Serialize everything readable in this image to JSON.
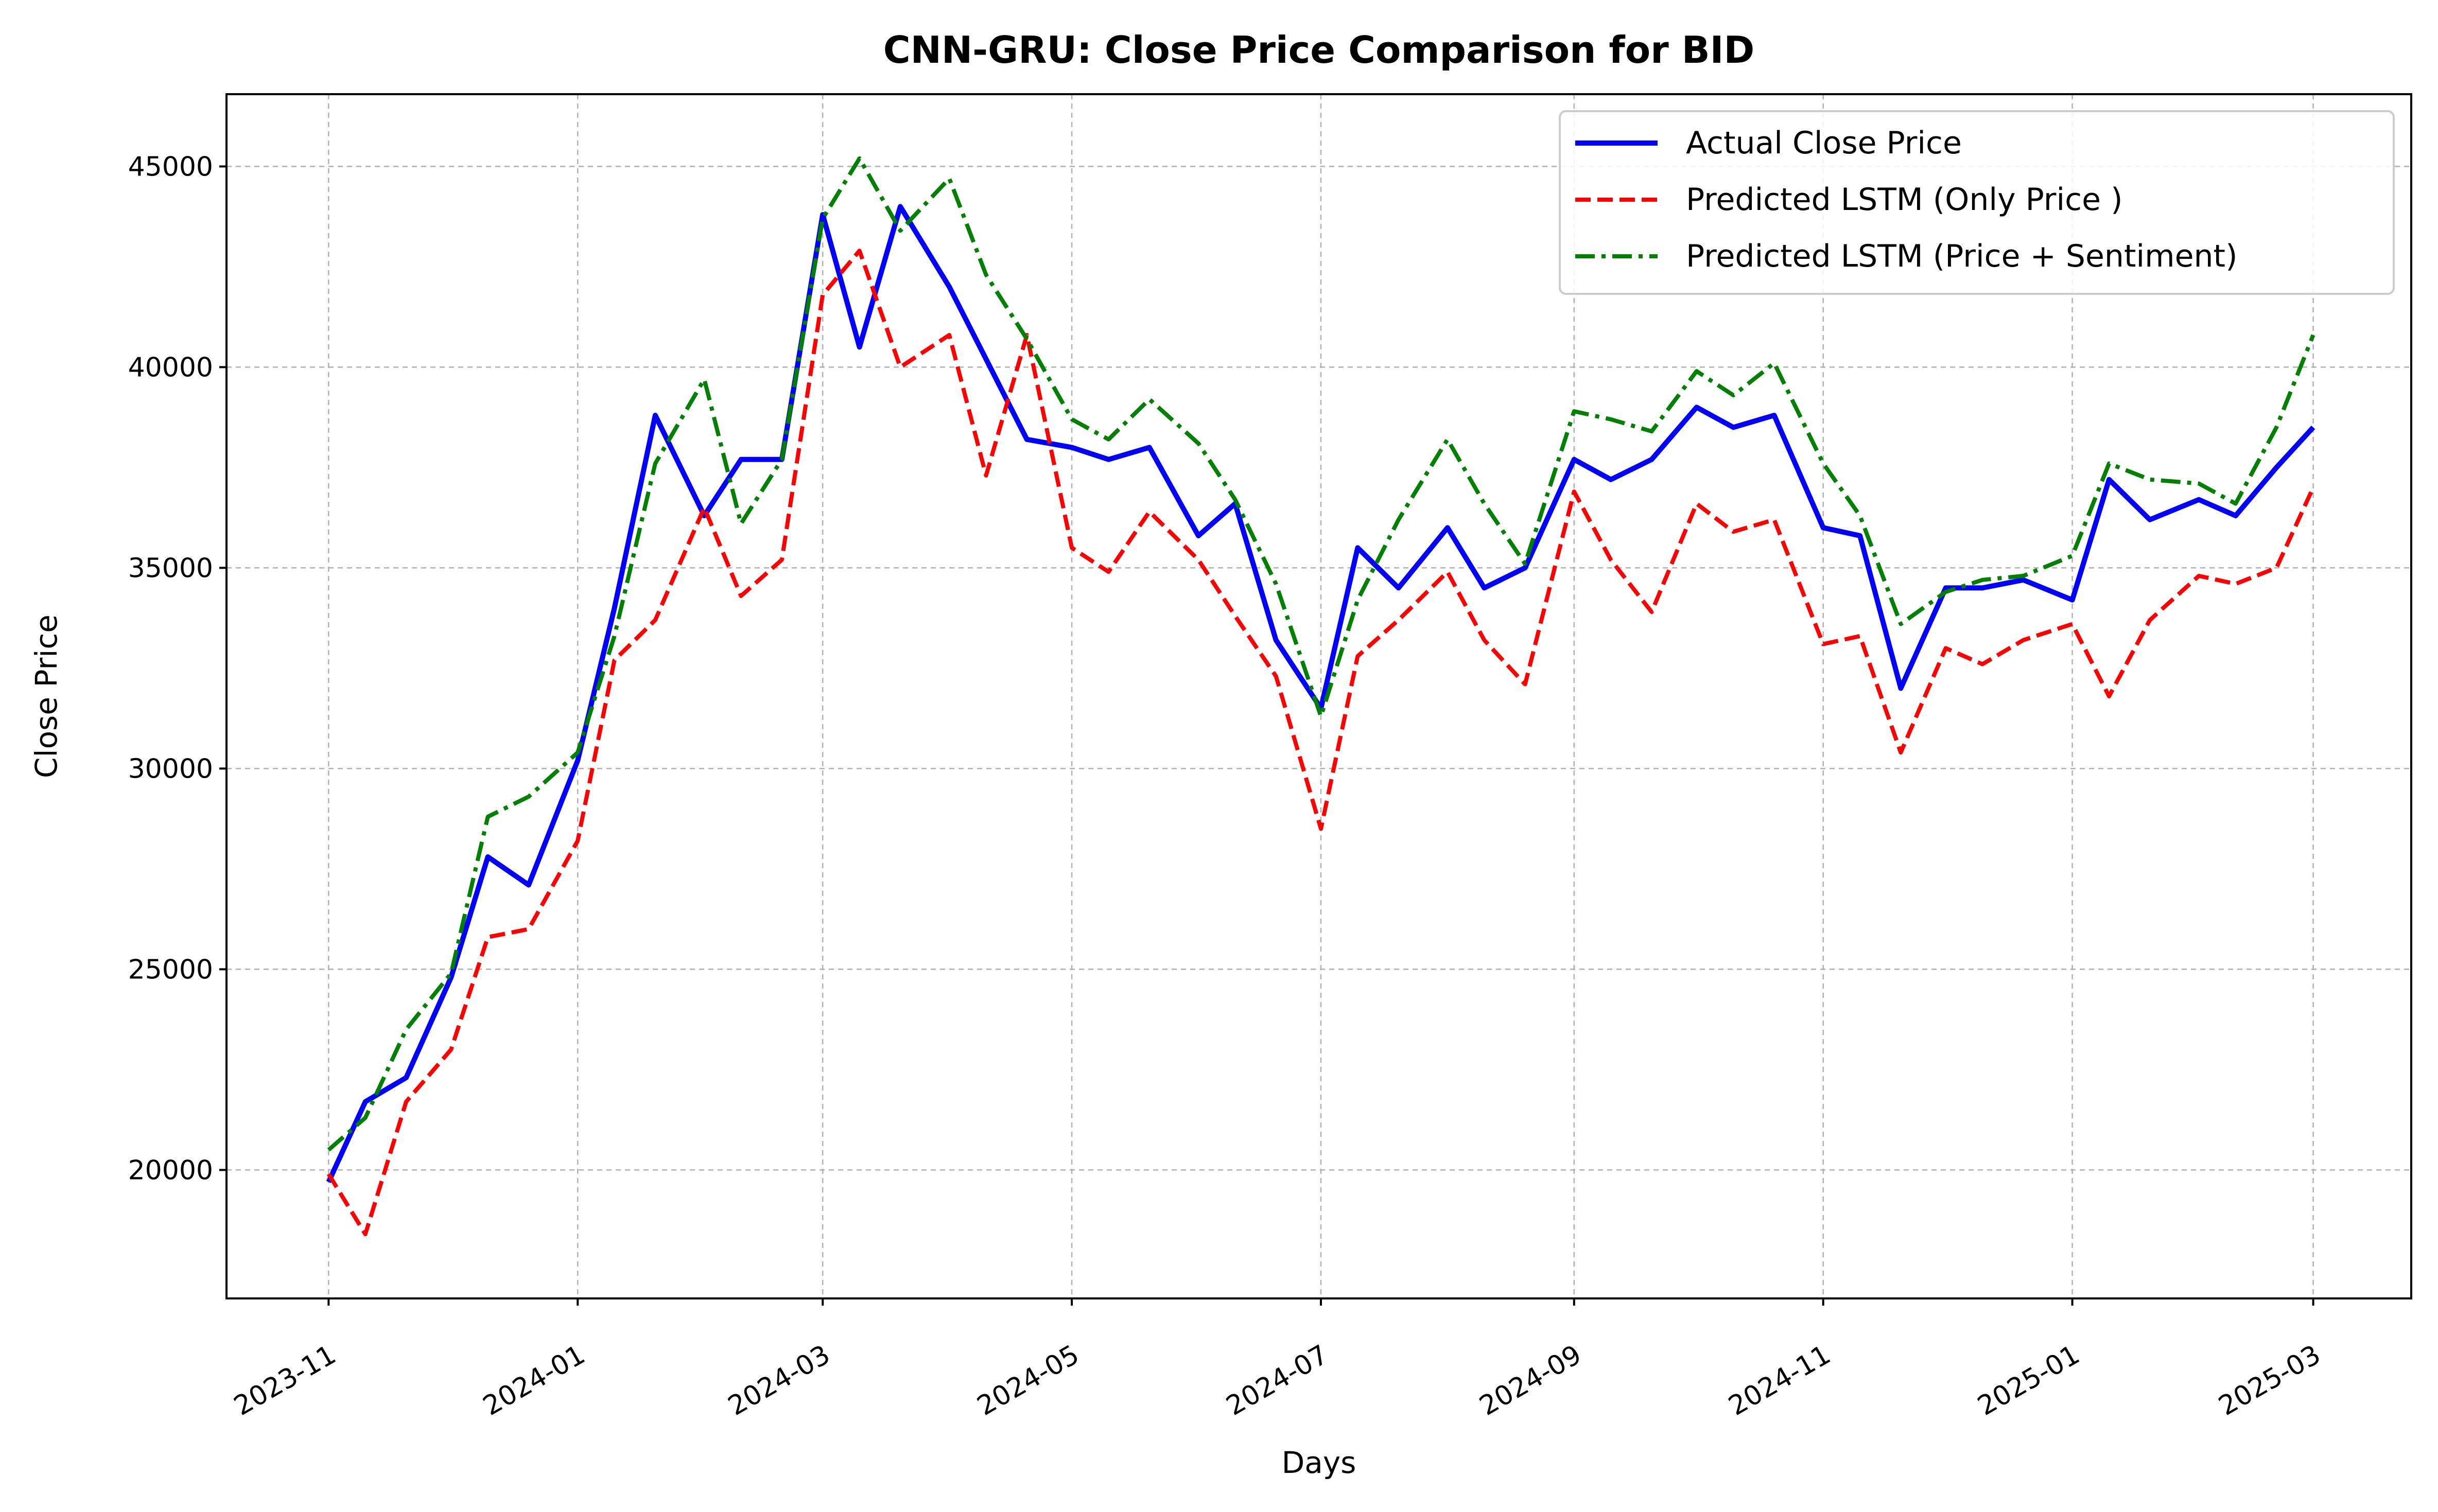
{
  "chart_data": {
    "type": "line",
    "title": "CNN-GRU: Close Price Comparison for BID",
    "xlabel": "Days",
    "ylabel": "Close Price",
    "ylim": [
      16800,
      46800
    ],
    "xlim": [
      "2023-10-07",
      "2025-03-25"
    ],
    "grid": true,
    "legend_position": "top-right",
    "x_ticks": [
      "2023-11",
      "2024-01",
      "2024-03",
      "2024-05",
      "2024-07",
      "2024-09",
      "2024-11",
      "2025-01",
      "2025-03"
    ],
    "y_ticks": [
      20000,
      25000,
      30000,
      35000,
      40000,
      45000
    ],
    "x": [
      "2023-11-01",
      "2023-11-10",
      "2023-11-20",
      "2023-12-01",
      "2023-12-10",
      "2023-12-20",
      "2024-01-01",
      "2024-01-10",
      "2024-01-20",
      "2024-02-01",
      "2024-02-10",
      "2024-02-20",
      "2024-03-01",
      "2024-03-10",
      "2024-03-20",
      "2024-04-01",
      "2024-04-10",
      "2024-04-20",
      "2024-05-01",
      "2024-05-10",
      "2024-05-20",
      "2024-06-01",
      "2024-06-10",
      "2024-06-20",
      "2024-07-01",
      "2024-07-10",
      "2024-07-20",
      "2024-08-01",
      "2024-08-10",
      "2024-08-20",
      "2024-09-01",
      "2024-09-10",
      "2024-09-20",
      "2024-10-01",
      "2024-10-10",
      "2024-10-20",
      "2024-11-01",
      "2024-11-10",
      "2024-11-20",
      "2024-12-01",
      "2024-12-10",
      "2024-12-20",
      "2025-01-01",
      "2025-01-10",
      "2025-01-20",
      "2025-02-01",
      "2025-02-10",
      "2025-02-20",
      "2025-03-01"
    ],
    "series": [
      {
        "name": "Actual Close Price",
        "color": "#0000ff",
        "style": "solid",
        "values": [
          19700,
          21700,
          22300,
          24800,
          27800,
          27100,
          30200,
          34000,
          38800,
          36300,
          37700,
          37700,
          43800,
          40500,
          44000,
          42000,
          40200,
          38200,
          38000,
          37700,
          38000,
          35800,
          36600,
          33200,
          31500,
          35500,
          34500,
          36000,
          34500,
          35000,
          37700,
          37200,
          37700,
          39000,
          38500,
          38800,
          36000,
          35800,
          32000,
          34500,
          34500,
          34700,
          34200,
          37200,
          36200,
          36700,
          36300,
          37500,
          38500
        ]
      },
      {
        "name": "Predicted LSTM (Only Price )",
        "color": "#ff0000",
        "style": "dashed",
        "values": [
          19900,
          18400,
          21700,
          23000,
          25800,
          26000,
          28200,
          32700,
          33700,
          36500,
          34300,
          35200,
          41800,
          42900,
          40000,
          40800,
          37300,
          40800,
          35500,
          34900,
          36400,
          35200,
          33800,
          32300,
          28500,
          32800,
          33700,
          34900,
          33200,
          32100,
          36900,
          35200,
          33900,
          36600,
          35900,
          36200,
          33100,
          33300,
          30400,
          33000,
          32600,
          33200,
          33600,
          31800,
          33700,
          34800,
          34600,
          35000,
          37000
        ]
      },
      {
        "name": "Predicted LSTM (Price + Sentiment)",
        "color": "#008000",
        "style": "dashdot",
        "values": [
          20500,
          21300,
          23500,
          24900,
          28800,
          29300,
          30400,
          33300,
          37600,
          39700,
          36100,
          37700,
          43700,
          45200,
          43400,
          44700,
          42300,
          40700,
          38700,
          38200,
          39200,
          38100,
          36700,
          34600,
          31300,
          34200,
          36200,
          38200,
          36600,
          35100,
          38900,
          38700,
          38400,
          39900,
          39300,
          40100,
          37600,
          36300,
          33600,
          34400,
          34700,
          34800,
          35300,
          37600,
          37200,
          37100,
          36600,
          38500,
          40800
        ]
      }
    ]
  }
}
